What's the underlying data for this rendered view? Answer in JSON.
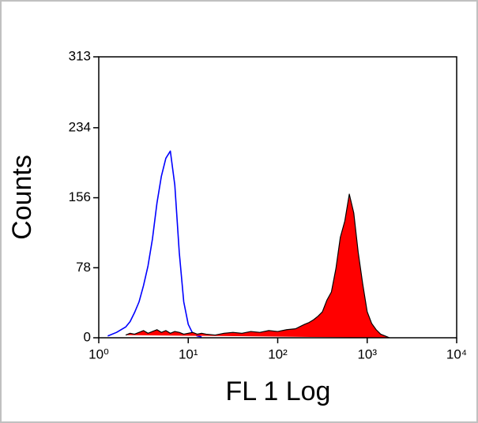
{
  "chart_data": {
    "type": "histogram-overlay",
    "xlabel": "FL 1 Log",
    "ylabel": "Counts",
    "xscale": "log",
    "xlim": [
      1,
      10000
    ],
    "ylim": [
      0,
      313
    ],
    "xticks": [
      {
        "value": 1,
        "label": "10⁰"
      },
      {
        "value": 10,
        "label": "10¹"
      },
      {
        "value": 100,
        "label": "10²"
      },
      {
        "value": 1000,
        "label": "10³"
      },
      {
        "value": 10000,
        "label": "10⁴"
      }
    ],
    "yticks": [
      0,
      78,
      156,
      234,
      313
    ],
    "x": [
      1.26,
      1.58,
      2.0,
      2.24,
      2.51,
      2.82,
      3.16,
      3.55,
      3.98,
      4.47,
      5.01,
      5.62,
      6.31,
      7.08,
      7.94,
      8.91,
      10,
      11.2,
      12.6,
      14.1,
      15.8,
      20,
      25.1,
      31.6,
      39.8,
      50.1,
      63.1,
      79.4,
      100,
      126,
      158,
      200,
      224,
      251,
      282,
      316,
      355,
      398,
      447,
      501,
      562,
      631,
      708,
      794,
      891,
      1000,
      1122,
      1259,
      1413,
      1585,
      1778
    ],
    "series": [
      {
        "color": "#0000ff",
        "fill": false,
        "values": [
          2,
          6,
          12,
          18,
          28,
          40,
          58,
          80,
          110,
          150,
          180,
          200,
          208,
          170,
          95,
          40,
          15,
          5,
          2,
          1,
          null,
          null,
          null,
          null,
          null,
          null,
          null,
          null,
          null,
          null,
          null,
          null,
          null,
          null,
          null,
          null,
          null,
          null,
          null,
          null,
          null,
          null,
          null,
          null,
          null,
          null,
          null,
          null,
          null,
          null,
          null
        ]
      },
      {
        "color": "#ff0000",
        "fill": true,
        "values": [
          null,
          null,
          3,
          5,
          4,
          6,
          8,
          5,
          7,
          9,
          6,
          8,
          5,
          7,
          6,
          4,
          5,
          6,
          4,
          5,
          4,
          3,
          5,
          6,
          5,
          7,
          6,
          8,
          7,
          9,
          10,
          15,
          17,
          20,
          24,
          29,
          42,
          51,
          77,
          112,
          130,
          160,
          139,
          95,
          60,
          29,
          16,
          9,
          4,
          2,
          0
        ]
      }
    ]
  }
}
